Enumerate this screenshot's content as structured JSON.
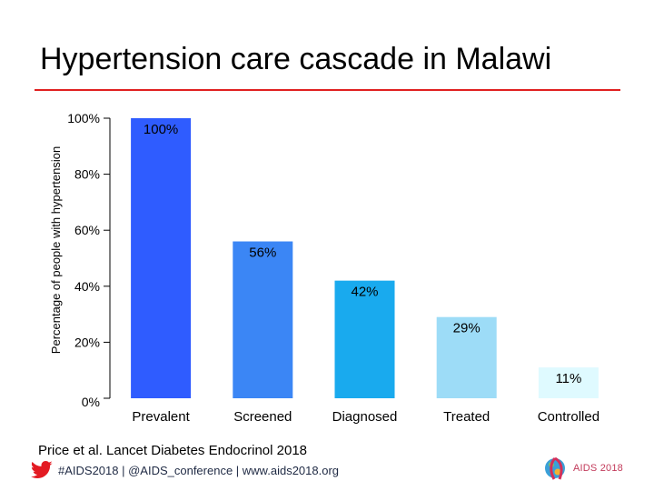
{
  "slide": {
    "title": "Hypertension care cascade in Malawi",
    "citation": "Price et al. Lancet Diabetes Endocrinol 2018",
    "footer": "#AIDS2018 | @AIDS_conference | www.aids2018.org",
    "logo": "AIDS 2018",
    "accent_color": "#e02020"
  },
  "chart_data": {
    "type": "bar",
    "title": "",
    "xlabel": "",
    "ylabel": "Percentage of people with hypertension",
    "categories": [
      "Prevalent",
      "Screened",
      "Diagnosed",
      "Treated",
      "Controlled"
    ],
    "values": [
      100,
      56,
      42,
      29,
      11
    ],
    "data_labels": [
      "100%",
      "56%",
      "42%",
      "29%",
      "11%"
    ],
    "colors": [
      "#2f5cff",
      "#3b86f5",
      "#19aaee",
      "#9ddcf7",
      "#dffaff"
    ],
    "yticks": [
      "0%",
      "20%",
      "40%",
      "60%",
      "80%",
      "100%"
    ],
    "ylim": [
      0,
      100
    ],
    "grid": false,
    "legend": "none"
  }
}
